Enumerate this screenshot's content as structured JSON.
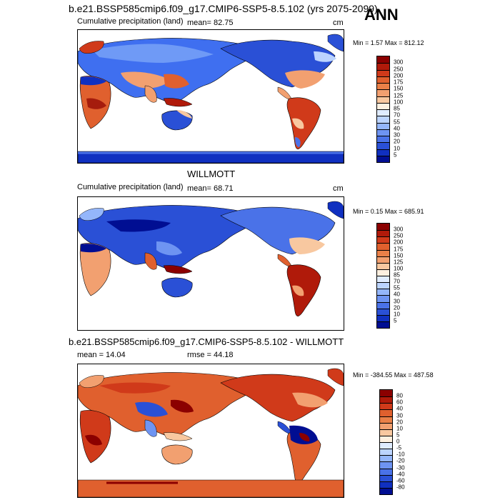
{
  "header": {
    "run_title": "b.e21.BSSP585cmip6.f09_g17.CMIP6-SSP5-8.5.102 (yrs 2075-2099)",
    "season": "ANN"
  },
  "panels": [
    {
      "variable_label": "Cumulative precipitation (land)",
      "mean_text": "mean=  82.75",
      "units": "cm",
      "minmax_text": "Min =   1.57 Max = 812.12",
      "colorbar_ticks": [
        "300",
        "250",
        "200",
        "175",
        "150",
        "125",
        "100",
        "85",
        "70",
        "55",
        "40",
        "30",
        "20",
        "10",
        "5"
      ]
    },
    {
      "panel_title": "WILLMOTT",
      "variable_label": "Cumulative precipitation (land)",
      "mean_text": "mean=  68.71",
      "units": "cm",
      "minmax_text": "Min =   0.15 Max = 685.91",
      "colorbar_ticks": [
        "300",
        "250",
        "200",
        "175",
        "150",
        "125",
        "100",
        "85",
        "70",
        "55",
        "40",
        "30",
        "20",
        "10",
        "5"
      ]
    },
    {
      "panel_title": "b.e21.BSSP585cmip6.f09_g17.CMIP6-SSP5-8.5.102 - WILLMOTT",
      "mean_text": "mean =  14.04",
      "rmse_text": "rmse =  44.18",
      "minmax_text": "Min = -384.55 Max = 487.58",
      "colorbar_ticks": [
        "80",
        "60",
        "40",
        "30",
        "20",
        "10",
        "5",
        "0",
        "-5",
        "-10",
        "-20",
        "-30",
        "-40",
        "-60",
        "-80"
      ]
    }
  ],
  "colors": {
    "precip_scale": [
      "#8b0000",
      "#b01a0a",
      "#d03a1a",
      "#e0602e",
      "#ea8048",
      "#f2a070",
      "#f8c8a0",
      "#fdf0e0",
      "#e0ecff",
      "#bcd4ff",
      "#94b6fb",
      "#6e94f2",
      "#4a72e8",
      "#2a50d6",
      "#1030c0",
      "#000e92"
    ],
    "diff_scale": [
      "#8b0000",
      "#b01a0a",
      "#d03a1a",
      "#e0602e",
      "#ea8048",
      "#f2a070",
      "#f8c8a0",
      "#fdf0e0",
      "#e0ecff",
      "#bcd4ff",
      "#94b6fb",
      "#6e94f2",
      "#4a72e8",
      "#2a50d6",
      "#1030c0",
      "#000e92"
    ]
  }
}
